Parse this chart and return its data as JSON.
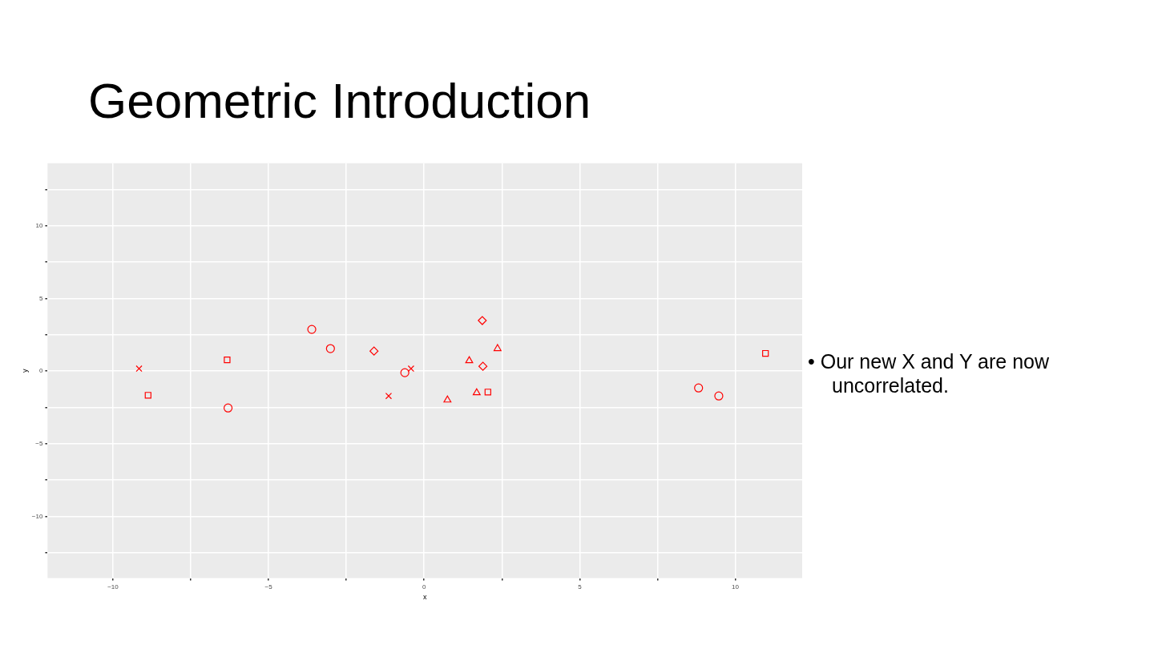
{
  "chart_data": {
    "type": "scatter",
    "title": "Geometric Introduction",
    "xlabel": "x",
    "ylabel": "y",
    "annotations": [
      "• Our new X and Y are now uncorrelated."
    ],
    "xlim": [
      -12.1,
      12.15
    ],
    "ylim": [
      -14.25,
      14.3
    ],
    "xticks": [
      -10,
      {
        "value": -7.5,
        "label": null
      },
      -5,
      {
        "value": -2.5,
        "label": null
      },
      0,
      {
        "value": 2.5,
        "label": null
      },
      5,
      {
        "value": 7.5,
        "label": null
      },
      10
    ],
    "yticks": [
      {
        "value": -12.5,
        "label": null
      },
      -10,
      {
        "value": -7.5,
        "label": null
      },
      -5,
      {
        "value": -2.5,
        "label": null
      },
      0,
      {
        "value": 2.5,
        "label": null
      },
      5,
      {
        "value": 7.5,
        "label": null
      },
      10,
      {
        "value": 12.5,
        "label": null
      }
    ],
    "grid": true,
    "legend": false,
    "series": [
      {
        "marker": "circle",
        "color": "#ff0000",
        "x": [
          -6.3,
          -3.61,
          -3.01,
          -0.62,
          8.82,
          9.47
        ],
        "values": [
          -2.54,
          2.87,
          1.55,
          -0.11,
          -1.16,
          -1.71
        ]
      },
      {
        "marker": "square",
        "color": "#ff0000",
        "x": [
          -8.87,
          -6.33,
          2.05,
          10.97
        ],
        "values": [
          -1.66,
          0.77,
          -1.44,
          1.22
        ]
      },
      {
        "marker": "triangle",
        "color": "#ff0000",
        "x": [
          0.75,
          1.45,
          1.69,
          2.36
        ],
        "values": [
          -1.99,
          0.72,
          -1.49,
          1.55
        ]
      },
      {
        "marker": "diamond",
        "color": "#ff0000",
        "x": [
          -1.61,
          1.87,
          1.89
        ],
        "values": [
          1.38,
          3.48,
          0.33
        ]
      },
      {
        "marker": "cross",
        "color": "#ff0000",
        "x": [
          -9.16,
          -1.14,
          -0.42
        ],
        "values": [
          0.17,
          -1.71,
          0.17
        ]
      }
    ]
  }
}
